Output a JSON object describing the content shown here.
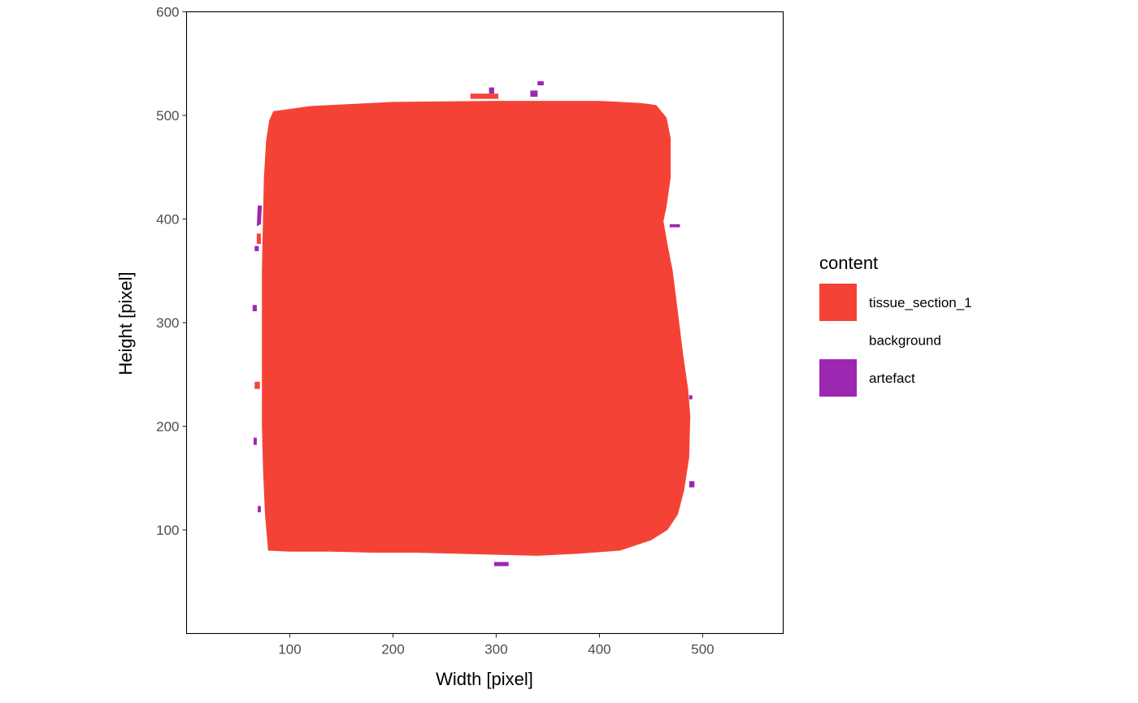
{
  "chart_data": {
    "type": "heatmap",
    "xlabel": "Width [pixel]",
    "ylabel": "Height [pixel]",
    "xlim": [
      0,
      578
    ],
    "ylim": [
      0,
      600
    ],
    "x_ticks": [
      100,
      200,
      300,
      400,
      500
    ],
    "y_ticks": [
      100,
      200,
      300,
      400,
      500,
      600
    ],
    "grid": false,
    "legend": {
      "title": "content",
      "position": "right",
      "entries": [
        {
          "label": "tissue_section_1",
          "color": "#F44336"
        },
        {
          "label": "background",
          "color": "#FFFFFF"
        },
        {
          "label": "artefact",
          "color": "#9C27B0"
        }
      ]
    },
    "regions": [
      {
        "content": "tissue_section_1",
        "outline": [
          [
            84,
            504
          ],
          [
            120,
            509
          ],
          [
            200,
            513
          ],
          [
            300,
            514
          ],
          [
            400,
            514
          ],
          [
            440,
            512
          ],
          [
            455,
            510
          ],
          [
            465,
            498
          ],
          [
            469,
            478
          ],
          [
            469,
            440
          ],
          [
            465,
            412
          ],
          [
            462,
            398
          ],
          [
            466,
            375
          ],
          [
            471,
            350
          ],
          [
            476,
            310
          ],
          [
            481,
            270
          ],
          [
            486,
            235
          ],
          [
            488,
            210
          ],
          [
            487,
            170
          ],
          [
            482,
            138
          ],
          [
            476,
            115
          ],
          [
            466,
            100
          ],
          [
            450,
            90
          ],
          [
            420,
            80
          ],
          [
            380,
            77
          ],
          [
            340,
            75
          ],
          [
            300,
            76
          ],
          [
            260,
            77
          ],
          [
            220,
            78
          ],
          [
            180,
            78
          ],
          [
            140,
            79
          ],
          [
            100,
            79
          ],
          [
            79,
            80
          ],
          [
            76,
            115
          ],
          [
            74,
            160
          ],
          [
            73,
            200
          ],
          [
            73,
            250
          ],
          [
            73,
            300
          ],
          [
            73,
            350
          ],
          [
            74,
            400
          ],
          [
            75,
            440
          ],
          [
            77,
            475
          ],
          [
            80,
            495
          ]
        ]
      },
      {
        "content": "tissue_section_1",
        "outline": [
          [
            68,
            386
          ],
          [
            72,
            386
          ],
          [
            72,
            376
          ],
          [
            68,
            376
          ]
        ]
      },
      {
        "content": "tissue_section_1",
        "outline": [
          [
            66,
            243
          ],
          [
            71,
            243
          ],
          [
            71,
            236
          ],
          [
            66,
            236
          ]
        ]
      },
      {
        "content": "tissue_section_1",
        "outline": [
          [
            275,
            521
          ],
          [
            302,
            521
          ],
          [
            302,
            516
          ],
          [
            275,
            516
          ]
        ]
      },
      {
        "content": "artefact",
        "outline": [
          [
            69,
            413
          ],
          [
            73,
            413
          ],
          [
            72,
            395
          ],
          [
            68,
            393
          ]
        ]
      },
      {
        "content": "artefact",
        "outline": [
          [
            66,
            374
          ],
          [
            70,
            374
          ],
          [
            70,
            369
          ],
          [
            66,
            369
          ]
        ]
      },
      {
        "content": "artefact",
        "outline": [
          [
            64,
            317
          ],
          [
            68,
            317
          ],
          [
            68,
            311
          ],
          [
            64,
            311
          ]
        ]
      },
      {
        "content": "artefact",
        "outline": [
          [
            65,
            189
          ],
          [
            68,
            189
          ],
          [
            68,
            182
          ],
          [
            65,
            182
          ]
        ]
      },
      {
        "content": "artefact",
        "outline": [
          [
            69,
            123
          ],
          [
            72,
            123
          ],
          [
            72,
            117
          ],
          [
            69,
            117
          ]
        ]
      },
      {
        "content": "artefact",
        "outline": [
          [
            468,
            395
          ],
          [
            478,
            395
          ],
          [
            478,
            392
          ],
          [
            468,
            392
          ]
        ]
      },
      {
        "content": "artefact",
        "outline": [
          [
            487,
            147
          ],
          [
            492,
            147
          ],
          [
            492,
            141
          ],
          [
            487,
            141
          ]
        ]
      },
      {
        "content": "artefact",
        "outline": [
          [
            487,
            230
          ],
          [
            490,
            230
          ],
          [
            490,
            226
          ],
          [
            487,
            226
          ]
        ]
      },
      {
        "content": "artefact",
        "outline": [
          [
            293,
            527
          ],
          [
            298,
            527
          ],
          [
            298,
            521
          ],
          [
            293,
            521
          ]
        ]
      },
      {
        "content": "artefact",
        "outline": [
          [
            333,
            524
          ],
          [
            340,
            524
          ],
          [
            340,
            518
          ],
          [
            333,
            518
          ]
        ]
      },
      {
        "content": "artefact",
        "outline": [
          [
            340,
            533
          ],
          [
            346,
            533
          ],
          [
            346,
            529
          ],
          [
            340,
            529
          ]
        ]
      },
      {
        "content": "artefact",
        "outline": [
          [
            298,
            69
          ],
          [
            312,
            69
          ],
          [
            312,
            65
          ],
          [
            298,
            65
          ]
        ]
      }
    ]
  }
}
